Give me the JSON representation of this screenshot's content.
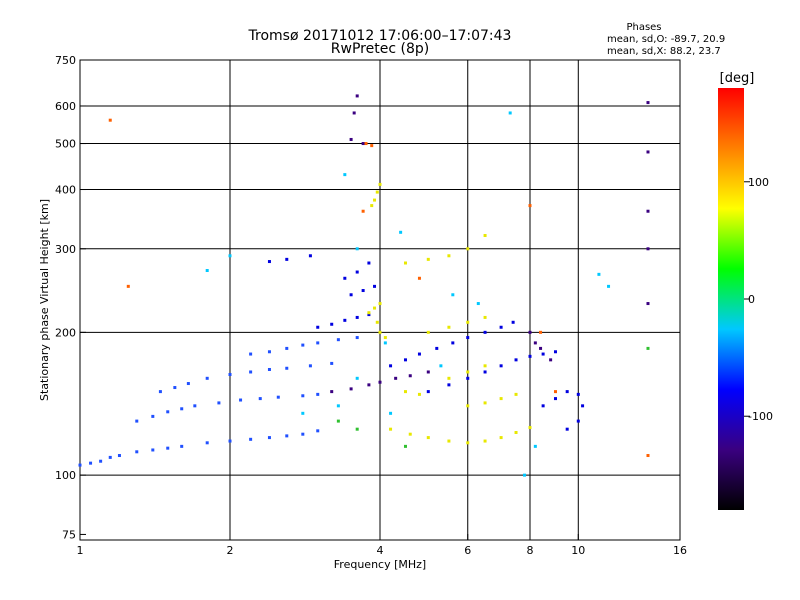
{
  "chart_data": {
    "type": "scatter",
    "title": "Tromsø 20171012 17:06:00–17:07:43",
    "subtitle": "RwPretec (8p)",
    "xlabel": "Frequency [MHz]",
    "ylabel": "Stationary phase Virtual Height [km]",
    "xscale": "log",
    "yscale": "log",
    "xlim": [
      1,
      16
    ],
    "ylim": [
      73,
      750
    ],
    "x_ticks": [
      1,
      2,
      4,
      6,
      8,
      10,
      16
    ],
    "y_ticks": [
      75,
      100,
      200,
      300,
      400,
      500,
      600,
      750
    ],
    "grid_x": [
      2,
      4,
      6,
      8,
      10
    ],
    "grid_y": [
      100,
      200,
      300,
      400,
      500,
      600
    ],
    "stats": {
      "header": "Phases",
      "line_o": "mean, sd,O: -89.7, 20.9",
      "line_x": "mean, sd,X:  88.2, 23.7"
    },
    "colorbar": {
      "label": "[deg]",
      "min": -180,
      "max": 180,
      "ticks": [
        100,
        0,
        -100
      ],
      "colors": [
        "#000000",
        "#3a0080",
        "#0000ff",
        "#00c8ff",
        "#00ff00",
        "#ffff00",
        "#ff8000",
        "#ff0000"
      ]
    },
    "series": [
      {
        "color": "#2050ff",
        "points": [
          [
            1.0,
            105
          ],
          [
            1.05,
            106
          ],
          [
            1.1,
            107
          ],
          [
            1.15,
            109
          ],
          [
            1.2,
            110
          ],
          [
            1.3,
            112
          ],
          [
            1.4,
            113
          ],
          [
            1.5,
            114
          ],
          [
            1.6,
            115
          ],
          [
            1.8,
            117
          ],
          [
            2.0,
            118
          ],
          [
            2.2,
            119
          ],
          [
            2.4,
            120
          ],
          [
            2.6,
            121
          ],
          [
            2.8,
            122
          ],
          [
            3.0,
            124
          ],
          [
            1.3,
            130
          ],
          [
            1.4,
            133
          ],
          [
            1.5,
            136
          ],
          [
            1.6,
            138
          ],
          [
            1.7,
            140
          ],
          [
            1.9,
            142
          ],
          [
            2.1,
            144
          ],
          [
            2.3,
            145
          ],
          [
            2.5,
            146
          ],
          [
            2.8,
            147
          ],
          [
            3.0,
            148
          ],
          [
            1.45,
            150
          ],
          [
            1.55,
            153
          ],
          [
            1.65,
            156
          ],
          [
            1.8,
            160
          ],
          [
            2.0,
            163
          ],
          [
            2.2,
            165
          ],
          [
            2.4,
            167
          ],
          [
            2.6,
            168
          ],
          [
            2.9,
            170
          ],
          [
            3.2,
            172
          ],
          [
            2.2,
            180
          ],
          [
            2.4,
            182
          ],
          [
            2.6,
            185
          ],
          [
            2.8,
            188
          ],
          [
            3.0,
            190
          ],
          [
            3.3,
            193
          ],
          [
            3.6,
            195
          ]
        ]
      },
      {
        "color": "#0000e0",
        "points": [
          [
            3.0,
            205
          ],
          [
            3.2,
            208
          ],
          [
            3.4,
            212
          ],
          [
            3.6,
            215
          ],
          [
            3.8,
            218
          ],
          [
            3.5,
            240
          ],
          [
            3.7,
            245
          ],
          [
            3.9,
            250
          ],
          [
            3.4,
            260
          ],
          [
            3.6,
            268
          ],
          [
            3.8,
            280
          ],
          [
            2.4,
            282
          ],
          [
            2.6,
            285
          ],
          [
            2.9,
            290
          ],
          [
            4.2,
            170
          ],
          [
            4.5,
            175
          ],
          [
            4.8,
            180
          ],
          [
            5.2,
            185
          ],
          [
            5.6,
            190
          ],
          [
            6.0,
            195
          ],
          [
            6.5,
            200
          ],
          [
            7.0,
            205
          ],
          [
            7.4,
            210
          ],
          [
            5.0,
            150
          ],
          [
            5.5,
            155
          ],
          [
            6.0,
            160
          ],
          [
            6.5,
            165
          ],
          [
            7.0,
            170
          ],
          [
            7.5,
            175
          ],
          [
            8.0,
            178
          ],
          [
            8.5,
            180
          ],
          [
            9.0,
            182
          ],
          [
            8.5,
            140
          ],
          [
            9.0,
            145
          ],
          [
            9.5,
            150
          ],
          [
            10.0,
            148
          ],
          [
            10.2,
            140
          ],
          [
            10.0,
            130
          ],
          [
            9.5,
            125
          ]
        ]
      },
      {
        "color": "#3a0080",
        "points": [
          [
            3.2,
            150
          ],
          [
            3.5,
            152
          ],
          [
            3.8,
            155
          ],
          [
            4.0,
            157
          ],
          [
            4.3,
            160
          ],
          [
            4.6,
            162
          ],
          [
            5.0,
            165
          ],
          [
            3.6,
            630
          ],
          [
            3.5,
            510
          ],
          [
            3.7,
            500
          ],
          [
            3.55,
            580
          ],
          [
            13.8,
            610
          ],
          [
            13.8,
            480
          ],
          [
            13.8,
            360
          ],
          [
            13.8,
            300
          ],
          [
            13.8,
            230
          ],
          [
            8.0,
            200
          ],
          [
            8.2,
            190
          ],
          [
            8.4,
            185
          ],
          [
            8.8,
            175
          ]
        ]
      },
      {
        "color": "#e8e800",
        "points": [
          [
            3.8,
            220
          ],
          [
            3.9,
            225
          ],
          [
            4.0,
            230
          ],
          [
            3.95,
            210
          ],
          [
            4.0,
            200
          ],
          [
            4.1,
            195
          ],
          [
            3.9,
            380
          ],
          [
            3.95,
            395
          ],
          [
            4.0,
            410
          ],
          [
            3.85,
            370
          ],
          [
            4.2,
            125
          ],
          [
            4.6,
            122
          ],
          [
            5.0,
            120
          ],
          [
            5.5,
            118
          ],
          [
            6.0,
            117
          ],
          [
            6.5,
            118
          ],
          [
            7.0,
            120
          ],
          [
            7.5,
            123
          ],
          [
            8.0,
            126
          ],
          [
            5.0,
            200
          ],
          [
            5.5,
            205
          ],
          [
            6.0,
            210
          ],
          [
            6.5,
            215
          ],
          [
            4.5,
            280
          ],
          [
            5.0,
            285
          ],
          [
            5.5,
            290
          ],
          [
            6.0,
            300
          ],
          [
            6.5,
            320
          ],
          [
            6.0,
            140
          ],
          [
            6.5,
            142
          ],
          [
            7.0,
            145
          ],
          [
            7.5,
            148
          ],
          [
            5.5,
            160
          ],
          [
            6.0,
            165
          ],
          [
            6.5,
            170
          ],
          [
            4.5,
            150
          ],
          [
            4.8,
            148
          ]
        ]
      },
      {
        "color": "#00c8ff",
        "points": [
          [
            2.0,
            290
          ],
          [
            2.8,
            135
          ],
          [
            3.3,
            140
          ],
          [
            4.2,
            135
          ],
          [
            3.6,
            160
          ],
          [
            4.1,
            190
          ],
          [
            5.6,
            240
          ],
          [
            6.3,
            230
          ],
          [
            7.3,
            580
          ],
          [
            11.0,
            265
          ],
          [
            11.5,
            250
          ],
          [
            3.4,
            430
          ],
          [
            3.6,
            300
          ],
          [
            4.4,
            325
          ],
          [
            1.8,
            270
          ],
          [
            5.3,
            170
          ],
          [
            7.8,
            100
          ],
          [
            8.2,
            115
          ]
        ]
      },
      {
        "color": "#ff6000",
        "points": [
          [
            1.25,
            250
          ],
          [
            3.75,
            500
          ],
          [
            3.85,
            495
          ],
          [
            1.15,
            560
          ],
          [
            8.0,
            370
          ],
          [
            8.4,
            200
          ],
          [
            4.8,
            260
          ],
          [
            13.8,
            110
          ],
          [
            3.7,
            360
          ],
          [
            9.0,
            150
          ]
        ]
      },
      {
        "color": "#30c030",
        "points": [
          [
            3.3,
            130
          ],
          [
            3.6,
            125
          ],
          [
            4.5,
            115
          ],
          [
            13.8,
            185
          ]
        ]
      }
    ]
  }
}
